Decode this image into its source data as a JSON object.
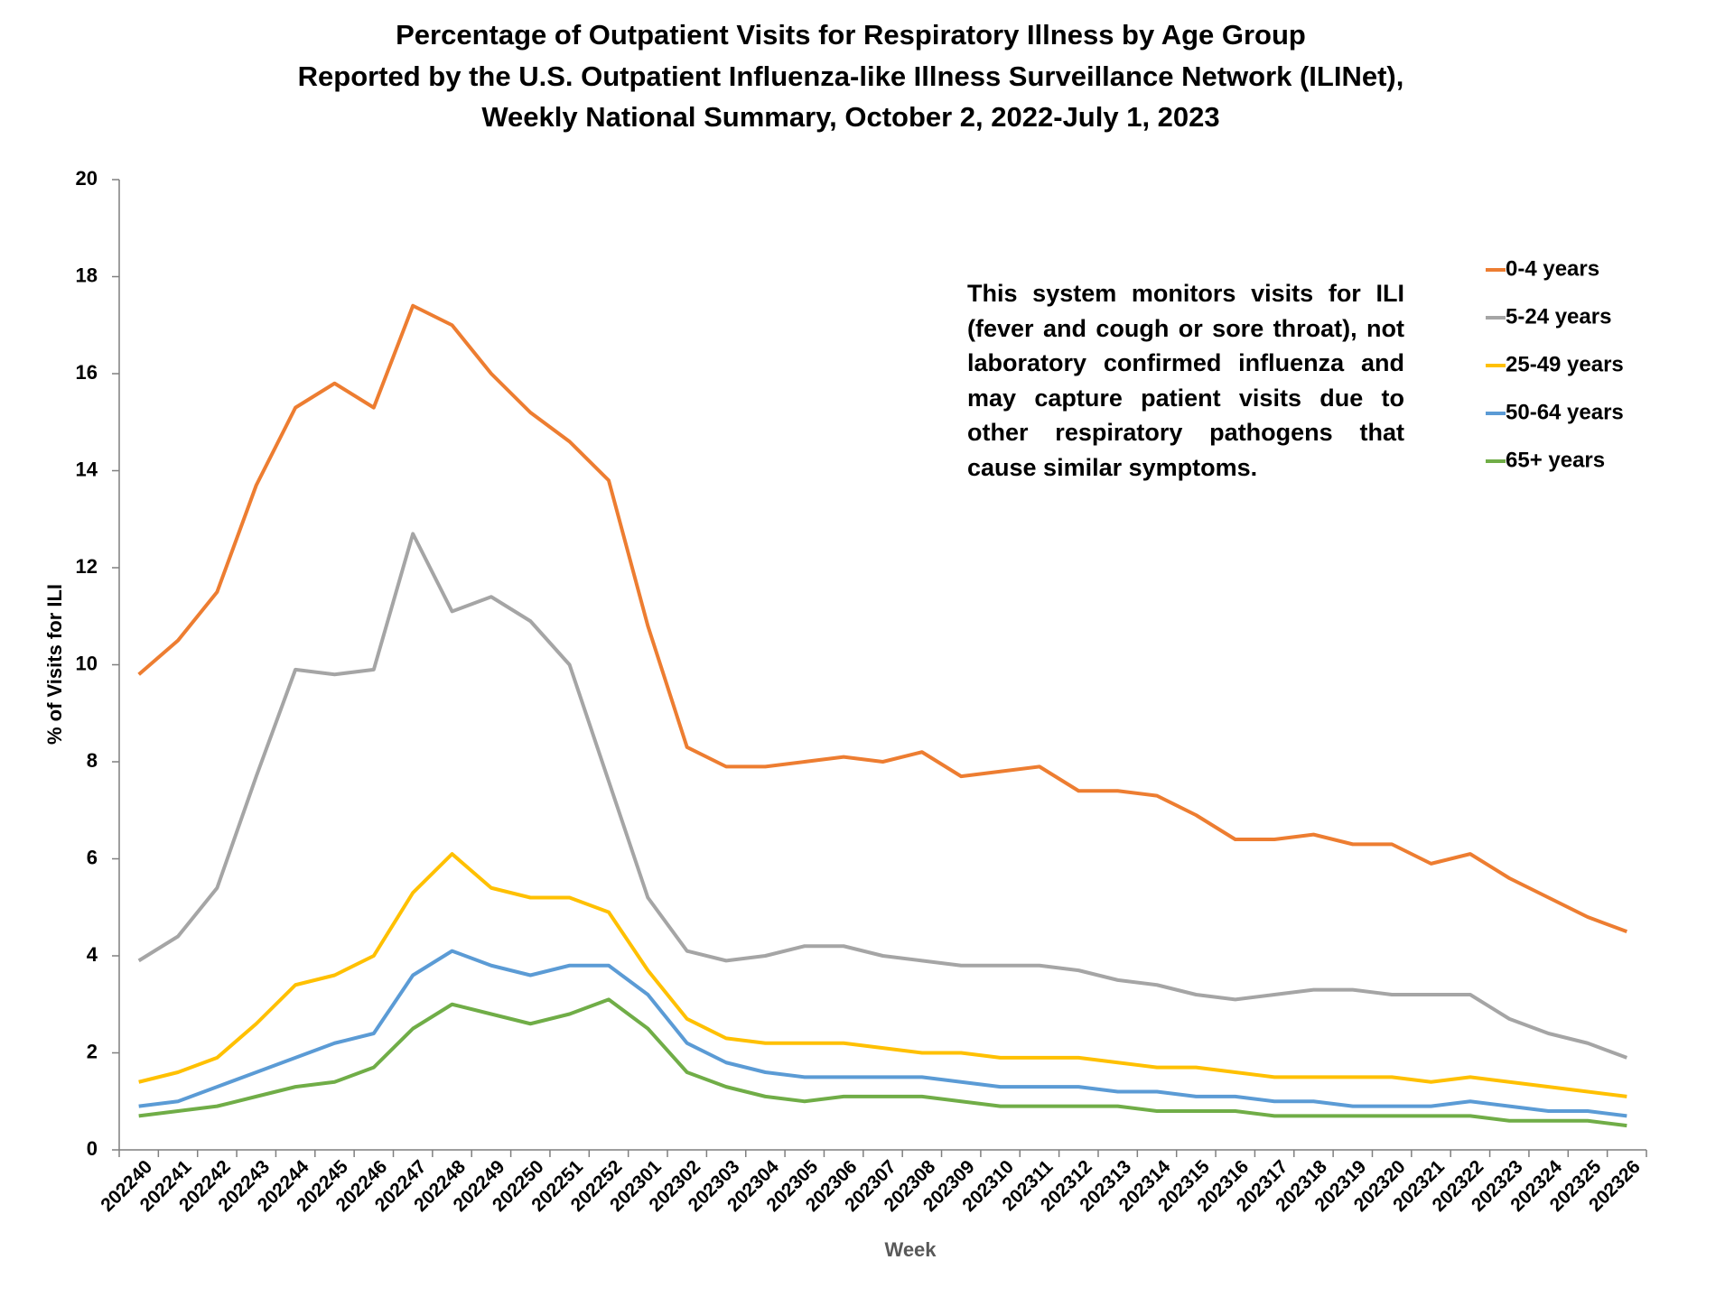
{
  "chart_data": {
    "type": "line",
    "title": [
      "Percentage of Outpatient Visits for Respiratory Illness by Age Group",
      "Reported by the U.S. Outpatient Influenza-like Illness Surveillance Network (ILINet),",
      "Weekly National Summary, October 2, 2022-July 1, 2023"
    ],
    "annotation": "This system monitors visits for ILI (fever and cough or sore throat), not laboratory confirmed influenza and may capture patient visits due to other respiratory pathogens that cause similar symptoms.",
    "x_label": "Week",
    "y_label": "% of Visits for ILI",
    "categories": [
      "202240",
      "202241",
      "202242",
      "202243",
      "202244",
      "202245",
      "202246",
      "202247",
      "202248",
      "202249",
      "202250",
      "202251",
      "202252",
      "202301",
      "202302",
      "202303",
      "202304",
      "202305",
      "202306",
      "202307",
      "202308",
      "202309",
      "202310",
      "202311",
      "202312",
      "202313",
      "202314",
      "202315",
      "202316",
      "202317",
      "202318",
      "202319",
      "202320",
      "202321",
      "202322",
      "202323",
      "202324",
      "202325",
      "202326"
    ],
    "series": [
      {
        "name": "0-4 years",
        "color": "#ed7d31",
        "values": [
          9.8,
          10.5,
          11.5,
          13.7,
          15.3,
          15.8,
          15.3,
          17.4,
          17.0,
          16.0,
          15.2,
          14.6,
          13.8,
          10.8,
          8.3,
          7.9,
          7.9,
          8.0,
          8.1,
          8.0,
          8.2,
          7.7,
          7.8,
          7.9,
          7.4,
          7.4,
          7.3,
          6.9,
          6.4,
          6.4,
          6.5,
          6.3,
          6.3,
          5.9,
          6.1,
          5.6,
          5.2,
          4.8,
          4.5
        ]
      },
      {
        "name": "5-24 years",
        "color": "#a5a5a5",
        "values": [
          3.9,
          4.4,
          5.4,
          7.7,
          9.9,
          9.8,
          9.9,
          12.7,
          11.1,
          11.4,
          10.9,
          10.0,
          7.6,
          5.2,
          4.1,
          3.9,
          4.0,
          4.2,
          4.2,
          4.0,
          3.9,
          3.8,
          3.8,
          3.8,
          3.7,
          3.5,
          3.4,
          3.2,
          3.1,
          3.2,
          3.3,
          3.3,
          3.2,
          3.2,
          3.2,
          2.7,
          2.4,
          2.2,
          1.9
        ]
      },
      {
        "name": "25-49 years",
        "color": "#ffc000",
        "values": [
          1.4,
          1.6,
          1.9,
          2.6,
          3.4,
          3.6,
          4.0,
          5.3,
          6.1,
          5.4,
          5.2,
          5.2,
          4.9,
          3.7,
          2.7,
          2.3,
          2.2,
          2.2,
          2.2,
          2.1,
          2.0,
          2.0,
          1.9,
          1.9,
          1.9,
          1.8,
          1.7,
          1.7,
          1.6,
          1.5,
          1.5,
          1.5,
          1.5,
          1.4,
          1.5,
          1.4,
          1.3,
          1.2,
          1.1
        ]
      },
      {
        "name": "50-64 years",
        "color": "#5b9bd5",
        "values": [
          0.9,
          1.0,
          1.3,
          1.6,
          1.9,
          2.2,
          2.4,
          3.6,
          4.1,
          3.8,
          3.6,
          3.8,
          3.8,
          3.2,
          2.2,
          1.8,
          1.6,
          1.5,
          1.5,
          1.5,
          1.5,
          1.4,
          1.3,
          1.3,
          1.3,
          1.2,
          1.2,
          1.1,
          1.1,
          1.0,
          1.0,
          0.9,
          0.9,
          0.9,
          1.0,
          0.9,
          0.8,
          0.8,
          0.7
        ]
      },
      {
        "name": "65+ years",
        "color": "#70ad47",
        "values": [
          0.7,
          0.8,
          0.9,
          1.1,
          1.3,
          1.4,
          1.7,
          2.5,
          3.0,
          2.8,
          2.6,
          2.8,
          3.1,
          2.5,
          1.6,
          1.3,
          1.1,
          1.0,
          1.1,
          1.1,
          1.1,
          1.0,
          0.9,
          0.9,
          0.9,
          0.9,
          0.8,
          0.8,
          0.8,
          0.7,
          0.7,
          0.7,
          0.7,
          0.7,
          0.7,
          0.6,
          0.6,
          0.6,
          0.5
        ]
      }
    ],
    "ylim": [
      0,
      20
    ],
    "yticks": [
      0,
      2,
      4,
      6,
      8,
      10,
      12,
      14,
      16,
      18,
      20
    ]
  }
}
